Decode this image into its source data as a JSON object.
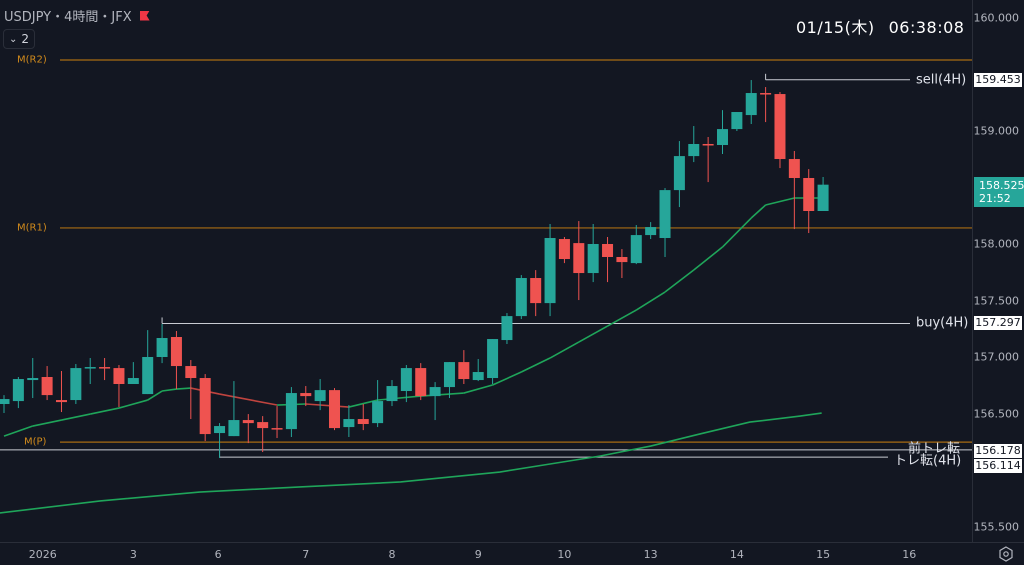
{
  "header": {
    "symbol_title": "USDJPY・4時間・JFX",
    "indicator_count": "2",
    "flag_color": "#f23645"
  },
  "clock": {
    "date": "01/15(木)",
    "time": "06:38:08"
  },
  "current_price": {
    "price": "158.525",
    "countdown": "21:52"
  },
  "colors": {
    "up": "#26a69a",
    "down": "#ef5350",
    "ma_up": "#1fa55a",
    "ma_down": "#c0443f",
    "pivot": "#a86b12",
    "level": "#c9ccd3",
    "background": "#131722"
  },
  "pivots": [
    {
      "name": "M(R2)",
      "price": 159.628
    },
    {
      "name": "M(R1)",
      "price": 158.142
    },
    {
      "name": "M(P)",
      "price": 156.247
    }
  ],
  "levels": [
    {
      "name": "sell(4H)",
      "price_label": "159.453",
      "price": 159.453,
      "start_index": 53
    },
    {
      "name": "buy(4H)",
      "price_label": "157.297",
      "price": 157.297,
      "start_index": 11
    },
    {
      "name": "前トレ転",
      "price_label": "156.178",
      "price": 156.178,
      "start_index": -1
    },
    {
      "name": "トレ転(4H)",
      "price_label": "156.114",
      "price": 156.114,
      "start_index": 15
    }
  ],
  "y_axis": {
    "ticks": [
      "160.000",
      "159.000",
      "158.000",
      "157.500",
      "157.000",
      "156.500",
      "155.500"
    ]
  },
  "x_axis": {
    "ticks": [
      {
        "label": "2026",
        "index": 2.7
      },
      {
        "label": "3",
        "index": 9
      },
      {
        "label": "6",
        "index": 14.9
      },
      {
        "label": "7",
        "index": 21
      },
      {
        "label": "8",
        "index": 27
      },
      {
        "label": "9",
        "index": 33
      },
      {
        "label": "10",
        "index": 39
      },
      {
        "label": "13",
        "index": 45
      },
      {
        "label": "14",
        "index": 51
      },
      {
        "label": "15",
        "index": 57
      },
      {
        "label": "16",
        "index": 63
      }
    ]
  },
  "chart_data": {
    "type": "candlestick",
    "title": "USDJPY 4H",
    "ylim": [
      155.35,
      160.15
    ],
    "candles_ohlc": [
      [
        156.584,
        156.663,
        156.504,
        156.628
      ],
      [
        156.61,
        156.823,
        156.548,
        156.805
      ],
      [
        156.796,
        156.991,
        156.637,
        156.814
      ],
      [
        156.823,
        156.92,
        156.619,
        156.663
      ],
      [
        156.619,
        156.876,
        156.513,
        156.601
      ],
      [
        156.619,
        156.938,
        156.584,
        156.902
      ],
      [
        156.902,
        156.991,
        156.761,
        156.911
      ],
      [
        156.911,
        156.991,
        156.796,
        156.902
      ],
      [
        156.902,
        156.929,
        156.557,
        156.761
      ],
      [
        156.761,
        156.955,
        156.761,
        156.814
      ],
      [
        156.672,
        157.238,
        156.672,
        157.0
      ],
      [
        157.0,
        157.292,
        156.946,
        157.168
      ],
      [
        157.177,
        157.23,
        156.716,
        156.92
      ],
      [
        156.92,
        156.973,
        156.451,
        156.814
      ],
      [
        156.814,
        156.849,
        156.256,
        156.318
      ],
      [
        156.327,
        156.415,
        156.106,
        156.389
      ],
      [
        156.3,
        156.787,
        156.3,
        156.442
      ],
      [
        156.442,
        156.495,
        156.238,
        156.415
      ],
      [
        156.424,
        156.477,
        156.159,
        156.371
      ],
      [
        156.371,
        156.566,
        156.283,
        156.362
      ],
      [
        156.362,
        156.734,
        156.292,
        156.681
      ],
      [
        156.681,
        156.743,
        156.566,
        156.654
      ],
      [
        156.61,
        156.805,
        156.53,
        156.707
      ],
      [
        156.707,
        156.725,
        156.353,
        156.371
      ],
      [
        156.38,
        156.575,
        156.292,
        156.451
      ],
      [
        156.451,
        156.584,
        156.353,
        156.407
      ],
      [
        156.415,
        156.796,
        156.38,
        156.61
      ],
      [
        156.61,
        156.796,
        156.566,
        156.743
      ],
      [
        156.699,
        156.929,
        156.601,
        156.902
      ],
      [
        156.902,
        156.946,
        156.619,
        156.654
      ],
      [
        156.654,
        156.778,
        156.442,
        156.734
      ],
      [
        156.734,
        156.955,
        156.637,
        156.955
      ],
      [
        156.955,
        157.061,
        156.761,
        156.805
      ],
      [
        156.796,
        156.982,
        156.787,
        156.867
      ],
      [
        156.814,
        157.159,
        156.761,
        157.159
      ],
      [
        157.15,
        157.389,
        157.115,
        157.362
      ],
      [
        157.362,
        157.725,
        157.336,
        157.699
      ],
      [
        157.699,
        157.769,
        157.362,
        157.477
      ],
      [
        157.477,
        158.177,
        157.362,
        158.053
      ],
      [
        158.044,
        158.062,
        157.831,
        157.867
      ],
      [
        158.008,
        158.203,
        157.504,
        157.743
      ],
      [
        157.743,
        158.177,
        157.663,
        158.0
      ],
      [
        158.0,
        158.062,
        157.663,
        157.885
      ],
      [
        157.885,
        157.955,
        157.699,
        157.84
      ],
      [
        157.831,
        158.168,
        157.822,
        158.079
      ],
      [
        158.079,
        158.194,
        158.044,
        158.15
      ],
      [
        158.053,
        158.495,
        157.885,
        158.477
      ],
      [
        158.477,
        158.911,
        158.327,
        158.778
      ],
      [
        158.778,
        159.044,
        158.725,
        158.885
      ],
      [
        158.885,
        158.947,
        158.548,
        158.876
      ],
      [
        158.876,
        159.185,
        158.796,
        159.017
      ],
      [
        159.017,
        159.168,
        159.0,
        159.168
      ],
      [
        159.141,
        159.451,
        159.062,
        159.336
      ],
      [
        159.336,
        159.389,
        159.079,
        159.327
      ],
      [
        159.327,
        159.345,
        158.672,
        158.752
      ],
      [
        158.752,
        158.823,
        158.132,
        158.584
      ],
      [
        158.584,
        158.663,
        158.097,
        158.292
      ],
      [
        158.292,
        158.593,
        158.292,
        158.525
      ]
    ],
    "ma_short": [
      [
        0,
        156.3
      ],
      [
        2,
        156.389
      ],
      [
        4,
        156.442
      ],
      [
        6,
        156.495
      ],
      [
        8,
        156.548
      ],
      [
        10,
        156.619
      ],
      [
        11,
        156.699
      ],
      [
        12,
        156.716
      ],
      [
        13,
        156.725
      ],
      [
        15,
        156.672
      ],
      [
        19,
        156.575
      ],
      [
        21,
        156.584
      ],
      [
        24,
        156.557
      ],
      [
        26,
        156.619
      ],
      [
        29,
        156.654
      ],
      [
        32,
        156.681
      ],
      [
        34,
        156.752
      ],
      [
        36,
        156.867
      ],
      [
        38,
        156.991
      ],
      [
        40,
        157.132
      ],
      [
        42,
        157.274
      ],
      [
        44,
        157.415
      ],
      [
        46,
        157.575
      ],
      [
        48,
        157.77
      ],
      [
        50,
        157.973
      ],
      [
        52,
        158.23
      ],
      [
        53,
        158.345
      ],
      [
        55,
        158.407
      ],
      [
        57,
        158.407
      ]
    ],
    "ma_long": [
      [
        -0.3,
        155.62
      ],
      [
        6.7,
        155.726
      ],
      [
        13.6,
        155.805
      ],
      [
        20.6,
        155.85
      ],
      [
        27.6,
        155.894
      ],
      [
        34.5,
        155.982
      ],
      [
        38,
        156.053
      ],
      [
        41.5,
        156.124
      ],
      [
        45,
        156.212
      ],
      [
        48.4,
        156.318
      ],
      [
        51.9,
        156.424
      ],
      [
        55.4,
        156.477
      ],
      [
        56.9,
        156.504
      ]
    ]
  }
}
